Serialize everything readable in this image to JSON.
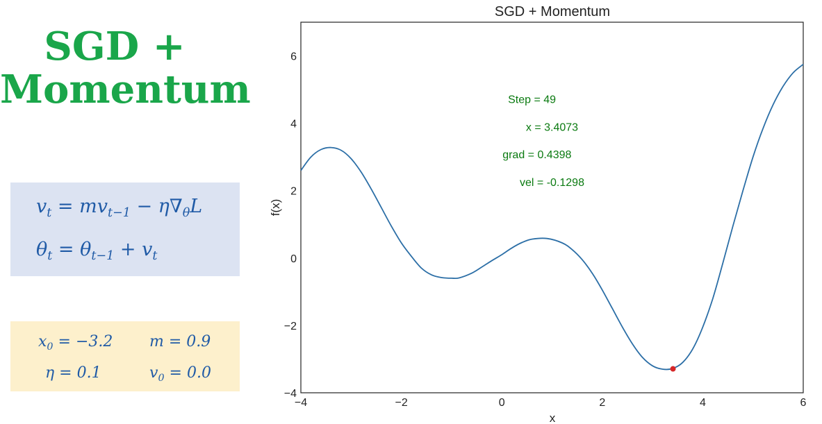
{
  "left_panel": {
    "heading_line1": "SGD +",
    "heading_line2": "Momentum",
    "update_rule": {
      "velocity": {
        "lhs_base": "v",
        "lhs_sub": "t",
        "eq": " = ",
        "m": "m",
        "v": "v",
        "v_sub": "t−1",
        "minus": " − ",
        "eta": "η",
        "nabla": "∇",
        "theta_sub": "θ",
        "loss": "L"
      },
      "param": {
        "lhs_base": "θ",
        "lhs_sub": "t",
        "eq": " = ",
        "theta": "θ",
        "theta_sub": "t−1",
        "plus": " + ",
        "v": "v",
        "v_sub": "t"
      }
    },
    "params": {
      "x0": {
        "base": "x",
        "sub": "0",
        "rest": " = −3.2"
      },
      "m": {
        "base": "m",
        "sub": "",
        "rest": " = 0.9"
      },
      "eta": {
        "base": "η",
        "sub": "",
        "rest": " = 0.1"
      },
      "v0": {
        "base": "v",
        "sub": "0",
        "rest": " = 0.0"
      }
    }
  },
  "chart_data": {
    "type": "line",
    "title": "SGD + Momentum",
    "xlabel": "x",
    "ylabel": "f(x)",
    "xlim": [
      -4,
      6
    ],
    "ylim": [
      -4,
      7
    ],
    "xticks": [
      "−4",
      "−2",
      "0",
      "2",
      "4",
      "6"
    ],
    "xtick_values": [
      -4,
      -2,
      0,
      2,
      4,
      6
    ],
    "yticks": [
      "−4",
      "−2",
      "0",
      "2",
      "4",
      "6"
    ],
    "ytick_values": [
      -4,
      -2,
      0,
      2,
      4,
      6
    ],
    "grid": false,
    "curve_color": "#2b6ea6",
    "point_color": "#d62728",
    "series": [
      {
        "x": [
          -4.0,
          -3.8,
          -3.6,
          -3.4,
          -3.2,
          -3.0,
          -2.8,
          -2.6,
          -2.4,
          -2.2,
          -2.0,
          -1.8,
          -1.6,
          -1.4,
          -1.2,
          -1.0,
          -0.85,
          -0.6,
          -0.4,
          -0.2,
          0.0,
          0.2,
          0.4,
          0.6,
          0.9,
          1.2,
          1.4,
          1.6,
          1.8,
          2.0,
          2.2,
          2.4,
          2.6,
          2.8,
          3.0,
          3.2,
          3.4,
          3.6,
          3.8,
          4.0,
          4.2,
          4.4,
          4.6,
          4.8,
          5.0,
          5.2,
          5.4,
          5.6,
          5.8,
          6.0
        ],
        "y": [
          2.6,
          3.0,
          3.22,
          3.28,
          3.2,
          2.95,
          2.55,
          2.05,
          1.5,
          0.95,
          0.45,
          0.05,
          -0.3,
          -0.5,
          -0.58,
          -0.6,
          -0.59,
          -0.45,
          -0.27,
          -0.08,
          0.1,
          0.3,
          0.46,
          0.56,
          0.58,
          0.45,
          0.25,
          -0.05,
          -0.45,
          -0.95,
          -1.5,
          -2.05,
          -2.55,
          -2.95,
          -3.2,
          -3.3,
          -3.28,
          -3.1,
          -2.7,
          -2.05,
          -1.2,
          -0.15,
          0.95,
          2.0,
          3.0,
          3.85,
          4.55,
          5.1,
          5.5,
          5.75
        ]
      }
    ],
    "point": {
      "x": 3.4073,
      "y": -3.29
    },
    "annotations": [
      {
        "text": "Step = 49",
        "x": 0.6,
        "y": 4.6
      },
      {
        "text": "x = 3.4073",
        "x": 1.0,
        "y": 3.78
      },
      {
        "text": "grad = 0.4398",
        "x": 0.7,
        "y": 2.96
      },
      {
        "text": "vel = -0.1298",
        "x": 1.0,
        "y": 2.14
      }
    ]
  }
}
